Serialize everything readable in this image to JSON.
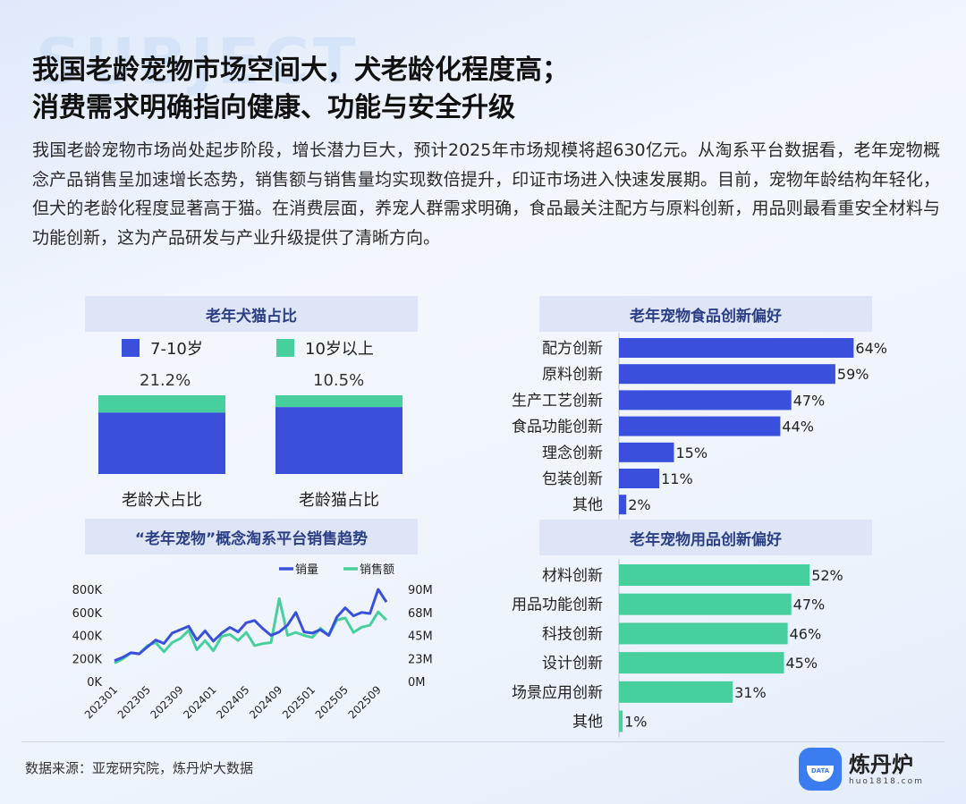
{
  "header": {
    "watermark": "SUBJECT",
    "title_line1": "我国老龄宠物市场空间大，犬老龄化程度高；",
    "title_line2": "消费需求明确指向健康、功能与安全升级",
    "intro": "我国老龄宠物市场尚处起步阶段，增长潜力巨大，预计2025年市场规模将超630亿元。从淘系平台数据看，老年宠物概念产品销售呈加速增长态势，销售额与销售量均实现数倍提升，印证市场进入快速发展期。目前，宠物年龄结构年轻化，但犬的老龄化程度显著高于猫。在消费层面，养宠人群需求明确，食品最关注配方与原料创新，用品则最看重安全材料与功能创新，这为产品研发与产业升级提供了清晰方向。"
  },
  "colors": {
    "blue": "#3a50dc",
    "green": "#47cf9d",
    "panel": "#dde5f6",
    "panel_text": "#2c3f86"
  },
  "chart_data": [
    {
      "type": "bar",
      "stacked": true,
      "title": "老年犬猫占比",
      "categories": [
        "老龄犬占比",
        "老龄猫占比"
      ],
      "series": [
        {
          "name": "7-10岁",
          "color": "#3a50dc",
          "values": [
            null,
            null
          ]
        },
        {
          "name": "10岁以上",
          "color": "#47cf9d",
          "values": [
            null,
            null
          ]
        }
      ],
      "totals": [
        "21.2%",
        "10.5%"
      ],
      "total_values": [
        21.2,
        10.5
      ],
      "lower_share": [
        0.78,
        0.85
      ]
    },
    {
      "type": "line",
      "title": "“老年宠物”概念淘系平台销售趋势",
      "x": [
        "202301",
        "202302",
        "202303",
        "202304",
        "202305",
        "202306",
        "202307",
        "202308",
        "202309",
        "202310",
        "202311",
        "202312",
        "202401",
        "202402",
        "202403",
        "202404",
        "202405",
        "202406",
        "202407",
        "202408",
        "202409",
        "202410",
        "202411",
        "202412",
        "202501",
        "202502",
        "202503",
        "202504",
        "202505",
        "202506",
        "202507",
        "202508",
        "202509",
        "202510"
      ],
      "x_ticks": [
        "202301",
        "202305",
        "202309",
        "202401",
        "202405",
        "202409",
        "202501",
        "202505",
        "202509"
      ],
      "y_left_ticks": [
        "0K",
        "200K",
        "400K",
        "600K",
        "800K"
      ],
      "y_right_ticks": [
        "0M",
        "23M",
        "45M",
        "68M",
        "90M"
      ],
      "ylim_left": [
        0,
        800000
      ],
      "ylim_right": [
        0,
        90000000
      ],
      "series": [
        {
          "name": "销量",
          "axis": "left",
          "color": "#3a50dc",
          "values": [
            180000,
            210000,
            250000,
            240000,
            300000,
            360000,
            330000,
            420000,
            450000,
            480000,
            360000,
            440000,
            350000,
            420000,
            470000,
            430000,
            510000,
            530000,
            460000,
            400000,
            430000,
            490000,
            600000,
            430000,
            420000,
            450000,
            400000,
            560000,
            640000,
            570000,
            600000,
            590000,
            800000,
            690000
          ]
        },
        {
          "name": "销售额",
          "axis": "right",
          "color": "#47cf9d",
          "values": [
            18000000,
            22000000,
            28000000,
            27000000,
            35000000,
            38000000,
            29000000,
            38000000,
            42000000,
            50000000,
            31000000,
            40000000,
            30000000,
            44000000,
            46000000,
            40000000,
            48000000,
            35000000,
            37000000,
            38000000,
            81000000,
            45000000,
            48000000,
            45000000,
            43000000,
            52000000,
            45000000,
            60000000,
            62000000,
            48000000,
            53000000,
            55000000,
            68000000,
            60000000
          ]
        }
      ]
    },
    {
      "type": "bar",
      "orientation": "horizontal",
      "title": "老年宠物食品创新偏好",
      "categories": [
        "配方创新",
        "原料创新",
        "生产工艺创新",
        "食品功能创新",
        "理念创新",
        "包装创新",
        "其他"
      ],
      "values": [
        64,
        59,
        47,
        44,
        15,
        11,
        2
      ],
      "labels": [
        "64%",
        "59%",
        "47%",
        "44%",
        "15%",
        "11%",
        "2%"
      ],
      "color": "#3a50dc",
      "xlim": [
        0,
        100
      ]
    },
    {
      "type": "bar",
      "orientation": "horizontal",
      "title": "老年宠物用品创新偏好",
      "categories": [
        "材料创新",
        "用品功能创新",
        "科技创新",
        "设计创新",
        "场景应用创新",
        "其他"
      ],
      "values": [
        52,
        47,
        46,
        45,
        31,
        1
      ],
      "labels": [
        "52%",
        "47%",
        "46%",
        "45%",
        "31%",
        "1%"
      ],
      "color": "#47cf9d",
      "xlim": [
        0,
        100
      ]
    }
  ],
  "footer": {
    "source": "数据来源：亚宠研究院，炼丹炉大数据",
    "brand_name": "炼丹炉",
    "brand_url": "huo1818.com",
    "brand_logo_text": "DATA"
  }
}
